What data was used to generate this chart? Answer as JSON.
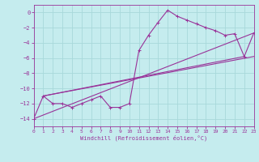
{
  "xlabel": "Windchill (Refroidissement éolien,°C)",
  "bg_color": "#c5ecee",
  "grid_color": "#a8d8da",
  "line_color": "#993399",
  "spine_color": "#993399",
  "xlim": [
    0,
    23
  ],
  "ylim": [
    -15,
    1
  ],
  "xticks": [
    0,
    1,
    2,
    3,
    4,
    5,
    6,
    7,
    8,
    9,
    10,
    11,
    12,
    13,
    14,
    15,
    16,
    17,
    18,
    19,
    20,
    21,
    22,
    23
  ],
  "yticks": [
    0,
    -2,
    -4,
    -6,
    -8,
    -10,
    -12,
    -14
  ],
  "line1_x": [
    0,
    1,
    2,
    3,
    4,
    5,
    6,
    7,
    8,
    9,
    10,
    11,
    12,
    13,
    14,
    15,
    16,
    17,
    18,
    19,
    20,
    21,
    22,
    23
  ],
  "line1_y": [
    -14,
    -11,
    -12,
    -12,
    -12.5,
    -12,
    -11.5,
    -11,
    -12.5,
    -12.5,
    -12,
    -5,
    -3,
    -1.3,
    0.3,
    -0.5,
    -1.0,
    -1.5,
    -2.0,
    -2.4,
    -3.0,
    -2.8,
    -5.8,
    -2.7
  ],
  "line2_x": [
    0,
    23
  ],
  "line2_y": [
    -14,
    -2.7
  ],
  "line3_x": [
    1,
    23
  ],
  "line3_y": [
    -11,
    -5.8
  ],
  "line4_x": [
    1,
    22
  ],
  "line4_y": [
    -11,
    -5.8
  ]
}
